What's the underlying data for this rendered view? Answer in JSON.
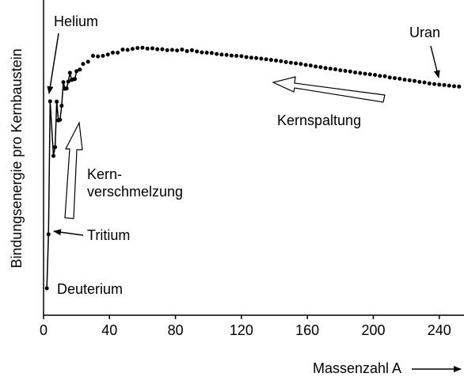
{
  "chart_data": {
    "type": "scatter",
    "ylabel": "Bindungsenergie pro Kernbaustein",
    "xlabel": "Massenzahl A",
    "annotations": [
      "Helium",
      "Uran",
      "Kernspaltung",
      "Kern-",
      "verschmelzung",
      "Tritium",
      "Deuterium"
    ],
    "xlim": [
      0,
      255
    ],
    "xticks": [
      0,
      40,
      80,
      120,
      160,
      200,
      240
    ],
    "ylim": [
      0.25,
      10.3
    ],
    "color": "#000000",
    "series": [
      {
        "line": true,
        "x": [
          2,
          3,
          4,
          6,
          7,
          8,
          9,
          10,
          11,
          12,
          13,
          14,
          15,
          16,
          17,
          18,
          19,
          20
        ],
        "values": [
          1.11,
          2.83,
          7.07,
          5.33,
          5.61,
          7.06,
          6.46,
          6.48,
          6.93,
          7.68,
          7.47,
          7.48,
          7.7,
          7.98,
          7.75,
          7.77,
          7.78,
          8.03
        ]
      },
      {
        "line": false,
        "x": [
          22,
          24,
          27,
          30,
          33,
          36,
          39,
          42,
          45,
          48,
          51,
          54,
          57,
          60,
          63,
          66,
          69,
          72,
          75,
          78,
          81,
          84,
          87,
          90,
          93,
          96,
          99,
          102,
          105,
          108,
          111,
          114,
          117,
          120,
          123,
          126,
          129,
          132,
          135,
          138,
          141,
          144,
          147,
          150,
          153,
          156,
          159,
          162,
          165,
          168,
          171,
          174,
          177,
          180,
          183,
          186,
          189,
          192,
          195,
          198,
          201,
          204,
          207,
          210,
          213,
          216,
          219,
          222,
          225,
          228,
          231,
          234,
          237,
          240,
          243,
          246,
          249,
          252
        ],
        "values": [
          8.08,
          8.26,
          8.33,
          8.52,
          8.5,
          8.52,
          8.56,
          8.62,
          8.62,
          8.72,
          8.71,
          8.74,
          8.77,
          8.78,
          8.75,
          8.76,
          8.73,
          8.73,
          8.7,
          8.71,
          8.69,
          8.72,
          8.67,
          8.7,
          8.66,
          8.63,
          8.62,
          8.61,
          8.58,
          8.56,
          8.55,
          8.53,
          8.52,
          8.51,
          8.48,
          8.46,
          8.45,
          8.43,
          8.41,
          8.39,
          8.37,
          8.35,
          8.32,
          8.3,
          8.28,
          8.26,
          8.23,
          8.21,
          8.18,
          8.16,
          8.13,
          8.11,
          8.09,
          8.06,
          8.04,
          8.02,
          7.99,
          7.97,
          7.95,
          7.93,
          7.91,
          7.88,
          7.87,
          7.83,
          7.81,
          7.79,
          7.76,
          7.74,
          7.72,
          7.69,
          7.67,
          7.64,
          7.62,
          7.6,
          7.59,
          7.57,
          7.55,
          7.54
        ]
      }
    ]
  }
}
